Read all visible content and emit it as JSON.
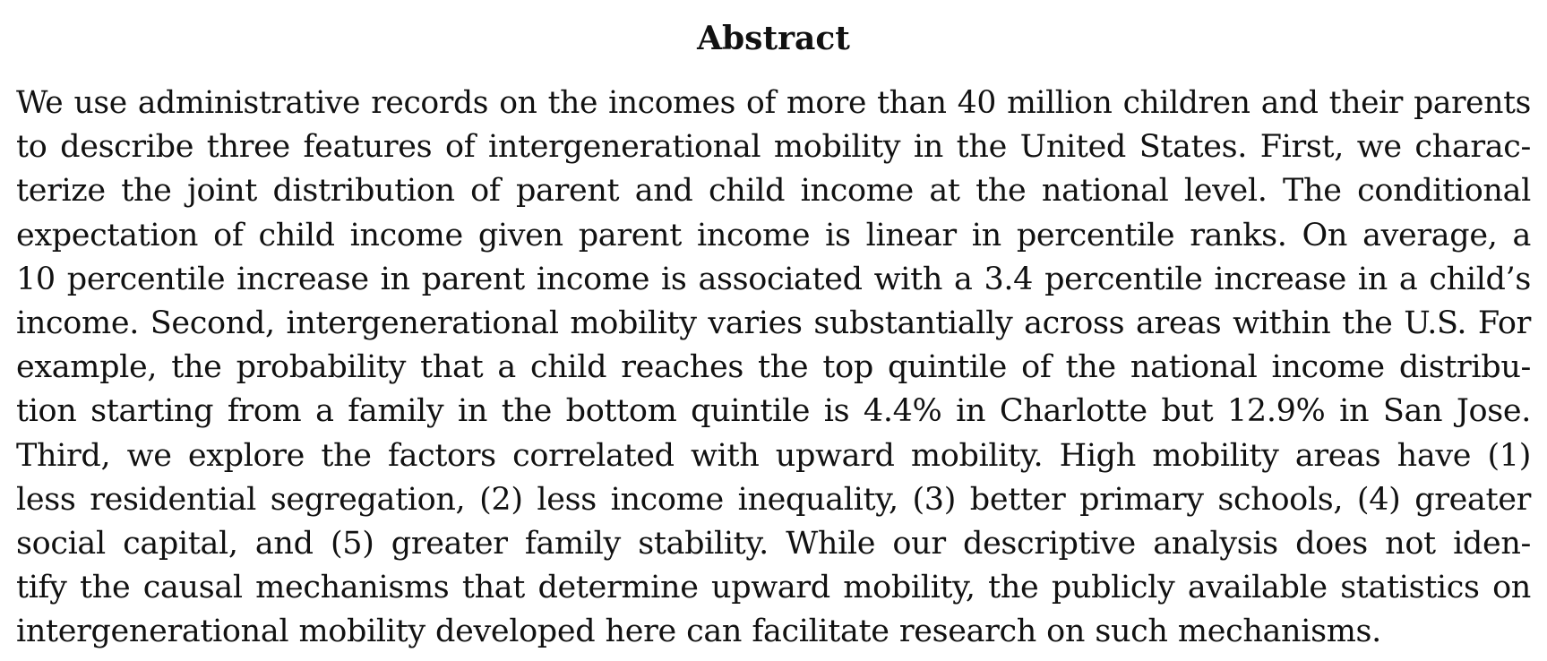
{
  "abstract": {
    "heading": "Abstract",
    "lines": [
      "We use administrative records on the incomes of more than 40 million children and their parents",
      "to describe three features of intergenerational mobility in the United States. First, we charac-",
      "terize the joint distribution of parent and child income at the national level. The conditional",
      "expectation of child income given parent income is linear in percentile ranks. On average, a",
      "10 percentile increase in parent income is associated with a 3.4 percentile increase in a child’s",
      "income. Second, intergenerational mobility varies substantially across areas within the U.S. For",
      "example, the probability that a child reaches the top quintile of the national income distribu-",
      "tion starting from a family in the bottom quintile is 4.4% in Charlotte but 12.9% in San Jose.",
      "Third, we explore the factors correlated with upward mobility. High mobility areas have (1)",
      "less residential segregation, (2) less income inequality, (3) better primary schools, (4) greater",
      "social capital, and (5) greater family stability. While our descriptive analysis does not iden-",
      "tify the causal mechanisms that determine upward mobility, the publicly available statistics on",
      "intergenerational mobility developed here can facilitate research on such mechanisms."
    ]
  }
}
